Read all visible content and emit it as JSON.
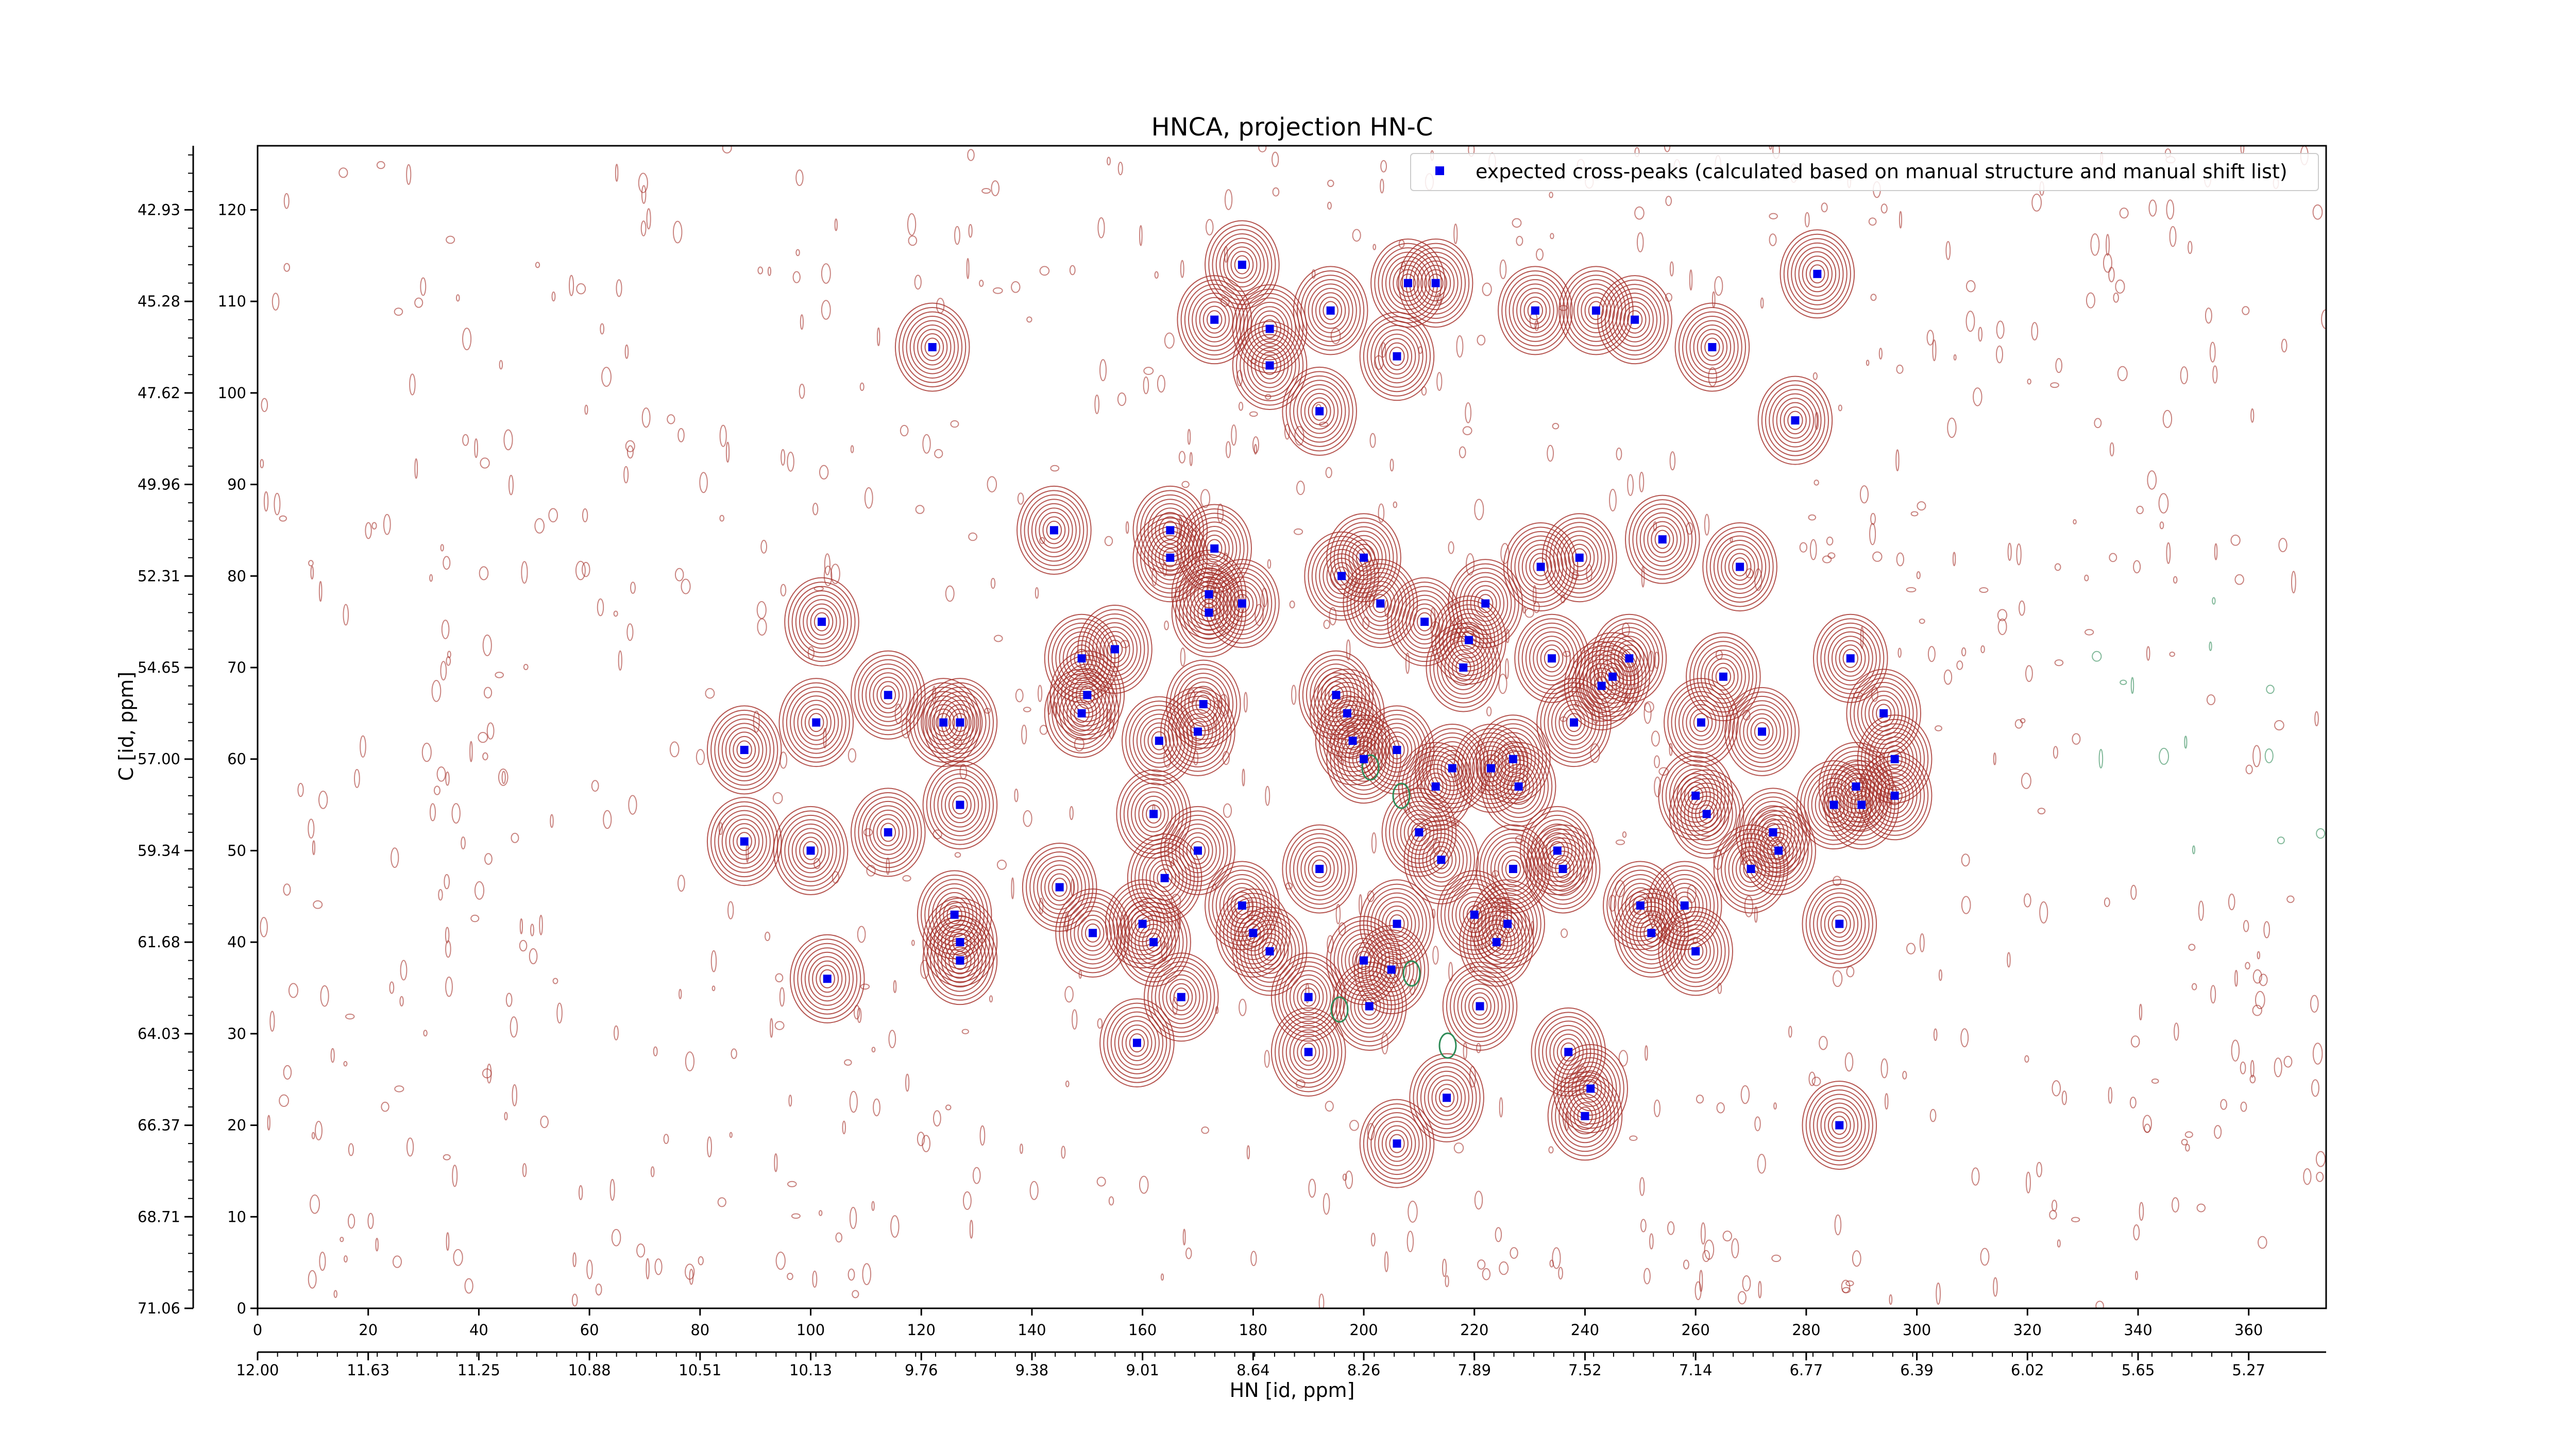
{
  "chart_data": {
    "type": "scatter",
    "title": "HNCA, projection HN-C",
    "xlabel": "HN [id, ppm]",
    "ylabel": "C [id, ppm]",
    "x_index_ticks": [
      "0",
      "20",
      "40",
      "60",
      "80",
      "100",
      "120",
      "140",
      "160",
      "180",
      "200",
      "220",
      "240",
      "260",
      "280",
      "300",
      "320",
      "340",
      "360"
    ],
    "x_ppm_ticks": [
      "12.00",
      "11.63",
      "11.25",
      "10.88",
      "10.51",
      "10.13",
      "9.76",
      "9.38",
      "9.01",
      "8.64",
      "8.26",
      "7.89",
      "7.52",
      "7.14",
      "6.77",
      "6.39",
      "6.02",
      "5.65",
      "5.27"
    ],
    "y_index_ticks": [
      "0",
      "10",
      "20",
      "30",
      "40",
      "50",
      "60",
      "70",
      "80",
      "90",
      "100",
      "110",
      "120"
    ],
    "y_ppm_ticks": [
      "71.06",
      "68.71",
      "66.37",
      "64.03",
      "61.68",
      "59.34",
      "57.00",
      "54.65",
      "52.31",
      "49.96",
      "47.62",
      "45.28",
      "42.93"
    ],
    "xlim": [
      0,
      374
    ],
    "ylim": [
      0,
      127
    ],
    "legend": {
      "label": "expected cross-peaks (calculated based on manual structure and manual shift list)",
      "placement": "top-right"
    },
    "colors": {
      "marker": "#0000ee",
      "contour_positive": "#a5302a",
      "contour_negative": "#2e8b57"
    },
    "series": [
      {
        "kind": "expected-cross-peaks",
        "points": [
          [
            122,
            105
          ],
          [
            88,
            51
          ],
          [
            88,
            61
          ],
          [
            100,
            50
          ],
          [
            101,
            64
          ],
          [
            102,
            75
          ],
          [
            103,
            36
          ],
          [
            114,
            52
          ],
          [
            114,
            67
          ],
          [
            124,
            64
          ],
          [
            127,
            64
          ],
          [
            127,
            55
          ],
          [
            126,
            43
          ],
          [
            127,
            40
          ],
          [
            127,
            38
          ],
          [
            144,
            85
          ],
          [
            145,
            46
          ],
          [
            149,
            71
          ],
          [
            149,
            65
          ],
          [
            150,
            67
          ],
          [
            151,
            41
          ],
          [
            155,
            72
          ],
          [
            159,
            29
          ],
          [
            160,
            42
          ],
          [
            162,
            40
          ],
          [
            162,
            54
          ],
          [
            163,
            62
          ],
          [
            164,
            47
          ],
          [
            165,
            85
          ],
          [
            165,
            82
          ],
          [
            167,
            34
          ],
          [
            170,
            50
          ],
          [
            170,
            63
          ],
          [
            171,
            66
          ],
          [
            172,
            78
          ],
          [
            172,
            76
          ],
          [
            173,
            108
          ],
          [
            173,
            83
          ],
          [
            178,
            114
          ],
          [
            178,
            77
          ],
          [
            178,
            44
          ],
          [
            180,
            41
          ],
          [
            183,
            107
          ],
          [
            183,
            103
          ],
          [
            183,
            39
          ],
          [
            190,
            34
          ],
          [
            190,
            28
          ],
          [
            192,
            98
          ],
          [
            192,
            48
          ],
          [
            194,
            109
          ],
          [
            195,
            67
          ],
          [
            196,
            80
          ],
          [
            197,
            65
          ],
          [
            198,
            62
          ],
          [
            200,
            82
          ],
          [
            200,
            60
          ],
          [
            200,
            38
          ],
          [
            201,
            33
          ],
          [
            203,
            77
          ],
          [
            205,
            37
          ],
          [
            206,
            104
          ],
          [
            206,
            61
          ],
          [
            206,
            42
          ],
          [
            206,
            18
          ],
          [
            208,
            112
          ],
          [
            210,
            52
          ],
          [
            211,
            75
          ],
          [
            213,
            57
          ],
          [
            213,
            112
          ],
          [
            214,
            49
          ],
          [
            215,
            23
          ],
          [
            216,
            59
          ],
          [
            218,
            70
          ],
          [
            219,
            73
          ],
          [
            220,
            43
          ],
          [
            221,
            33
          ],
          [
            222,
            77
          ],
          [
            223,
            59
          ],
          [
            224,
            40
          ],
          [
            226,
            42
          ],
          [
            227,
            48
          ],
          [
            227,
            60
          ],
          [
            228,
            57
          ],
          [
            231,
            109
          ],
          [
            232,
            81
          ],
          [
            234,
            71
          ],
          [
            235,
            50
          ],
          [
            236,
            48
          ],
          [
            237,
            28
          ],
          [
            238,
            64
          ],
          [
            239,
            82
          ],
          [
            240,
            21
          ],
          [
            241,
            24
          ],
          [
            242,
            109
          ],
          [
            243,
            68
          ],
          [
            245,
            69
          ],
          [
            248,
            71
          ],
          [
            249,
            108
          ],
          [
            250,
            44
          ],
          [
            252,
            41
          ],
          [
            254,
            84
          ],
          [
            258,
            44
          ],
          [
            260,
            39
          ],
          [
            260,
            56
          ],
          [
            261,
            64
          ],
          [
            262,
            54
          ],
          [
            263,
            105
          ],
          [
            265,
            69
          ],
          [
            268,
            81
          ],
          [
            270,
            48
          ],
          [
            272,
            63
          ],
          [
            274,
            52
          ],
          [
            275,
            50
          ],
          [
            278,
            97
          ],
          [
            282,
            113
          ],
          [
            285,
            55
          ],
          [
            286,
            42
          ],
          [
            286,
            20
          ],
          [
            288,
            71
          ],
          [
            289,
            57
          ],
          [
            290,
            55
          ],
          [
            296,
            56
          ],
          [
            296,
            60
          ],
          [
            294,
            65
          ]
        ]
      }
    ]
  }
}
